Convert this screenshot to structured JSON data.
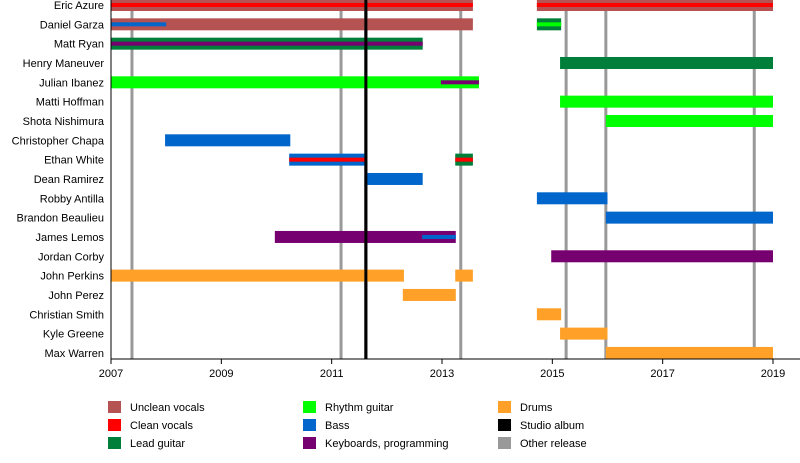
{
  "chart_data": {
    "type": "timeline",
    "xlim": [
      2007,
      2019
    ],
    "x_ticks": [
      "2007",
      "2009",
      "2011",
      "2013",
      "2015",
      "2017",
      "2019"
    ],
    "members": [
      "Eric Azure",
      "Daniel Garza",
      "Matt Ryan",
      "Henry Maneuver",
      "Julian Ibanez",
      "Matti Hoffman",
      "Shota Nishimura",
      "Christopher Chapa",
      "Ethan White",
      "Dean Ramirez",
      "Robby Antilla",
      "Brandon Beaulieu",
      "James Lemos",
      "Jordan Corby",
      "John Perkins",
      "John Perez",
      "Christian Smith",
      "Kyle Greene",
      "Max Warren"
    ],
    "roles": {
      "unclean": {
        "label": "Unclean vocals",
        "color": "#B55252"
      },
      "clean": {
        "label": "Clean vocals",
        "color": "#FF0000"
      },
      "lead": {
        "label": "Lead guitar",
        "color": "#007F3A"
      },
      "rhythm": {
        "label": "Rhythm guitar",
        "color": "#00FF00"
      },
      "bass": {
        "label": "Bass",
        "color": "#0066CC"
      },
      "keys": {
        "label": "Keyboards, programming",
        "color": "#770070"
      },
      "drums": {
        "label": "Drums",
        "color": "#FFA028"
      },
      "studio": {
        "label": "Studio album",
        "color": "#000000"
      },
      "other": {
        "label": "Other release",
        "color": "#999999"
      }
    },
    "legend_order": [
      [
        "unclean",
        "clean",
        "lead"
      ],
      [
        "rhythm",
        "bass",
        "keys"
      ],
      [
        "drums",
        "studio",
        "other"
      ]
    ],
    "bars": [
      {
        "member": 0,
        "role": "unclean",
        "start": 2007,
        "end": 2013.56
      },
      {
        "member": 0,
        "role": "clean",
        "start": 2007,
        "end": 2013.56,
        "stripe": true
      },
      {
        "member": 0,
        "role": "unclean",
        "start": 2014.72,
        "end": 2019
      },
      {
        "member": 0,
        "role": "clean",
        "start": 2014.72,
        "end": 2019,
        "stripe": true
      },
      {
        "member": 1,
        "role": "unclean",
        "start": 2007,
        "end": 2013.56
      },
      {
        "member": 1,
        "role": "bass",
        "start": 2007,
        "end": 2008.0,
        "stripe": true
      },
      {
        "member": 1,
        "role": "lead",
        "start": 2014.72,
        "end": 2015.16
      },
      {
        "member": 1,
        "role": "rhythm",
        "start": 2014.72,
        "end": 2015.16,
        "stripe": true
      },
      {
        "member": 2,
        "role": "lead",
        "start": 2007,
        "end": 2012.65
      },
      {
        "member": 2,
        "role": "keys",
        "start": 2007,
        "end": 2012.65,
        "stripe": true
      },
      {
        "member": 3,
        "role": "lead",
        "start": 2015.14,
        "end": 2019
      },
      {
        "member": 4,
        "role": "rhythm",
        "start": 2007,
        "end": 2013.67
      },
      {
        "member": 4,
        "role": "keys",
        "start": 2012.98,
        "end": 2013.67,
        "stripe": true
      },
      {
        "member": 5,
        "role": "rhythm",
        "start": 2015.14,
        "end": 2019
      },
      {
        "member": 6,
        "role": "rhythm",
        "start": 2015.97,
        "end": 2019
      },
      {
        "member": 7,
        "role": "bass",
        "start": 2007.98,
        "end": 2010.25
      },
      {
        "member": 8,
        "role": "bass",
        "start": 2010.23,
        "end": 2011.62
      },
      {
        "member": 8,
        "role": "clean",
        "start": 2010.23,
        "end": 2011.62,
        "stripe": true
      },
      {
        "member": 8,
        "role": "lead",
        "start": 2013.24,
        "end": 2013.56
      },
      {
        "member": 8,
        "role": "clean",
        "start": 2013.24,
        "end": 2013.56,
        "stripe": true
      },
      {
        "member": 9,
        "role": "bass",
        "start": 2011.6,
        "end": 2012.65
      },
      {
        "member": 10,
        "role": "bass",
        "start": 2014.72,
        "end": 2016.0
      },
      {
        "member": 11,
        "role": "bass",
        "start": 2015.97,
        "end": 2019
      },
      {
        "member": 12,
        "role": "keys",
        "start": 2009.97,
        "end": 2013.25
      },
      {
        "member": 12,
        "role": "bass",
        "start": 2012.64,
        "end": 2013.25,
        "stripe": true
      },
      {
        "member": 13,
        "role": "keys",
        "start": 2014.98,
        "end": 2019
      },
      {
        "member": 14,
        "role": "drums",
        "start": 2007,
        "end": 2012.31
      },
      {
        "member": 14,
        "role": "drums",
        "start": 2013.24,
        "end": 2013.56
      },
      {
        "member": 15,
        "role": "drums",
        "start": 2012.29,
        "end": 2013.25
      },
      {
        "member": 16,
        "role": "drums",
        "start": 2014.72,
        "end": 2015.16
      },
      {
        "member": 17,
        "role": "drums",
        "start": 2015.14,
        "end": 2016.0
      },
      {
        "member": 18,
        "role": "drums",
        "start": 2015.97,
        "end": 2019
      }
    ],
    "events": [
      {
        "role": "other",
        "year": 2007.38
      },
      {
        "role": "other",
        "year": 2011.17
      },
      {
        "role": "studio",
        "year": 2011.62
      },
      {
        "role": "other",
        "year": 2013.34
      },
      {
        "role": "other",
        "year": 2015.25
      },
      {
        "role": "other",
        "year": 2015.97
      },
      {
        "role": "other",
        "year": 2018.66
      }
    ],
    "legend_placement": "bottom",
    "grid": false
  }
}
